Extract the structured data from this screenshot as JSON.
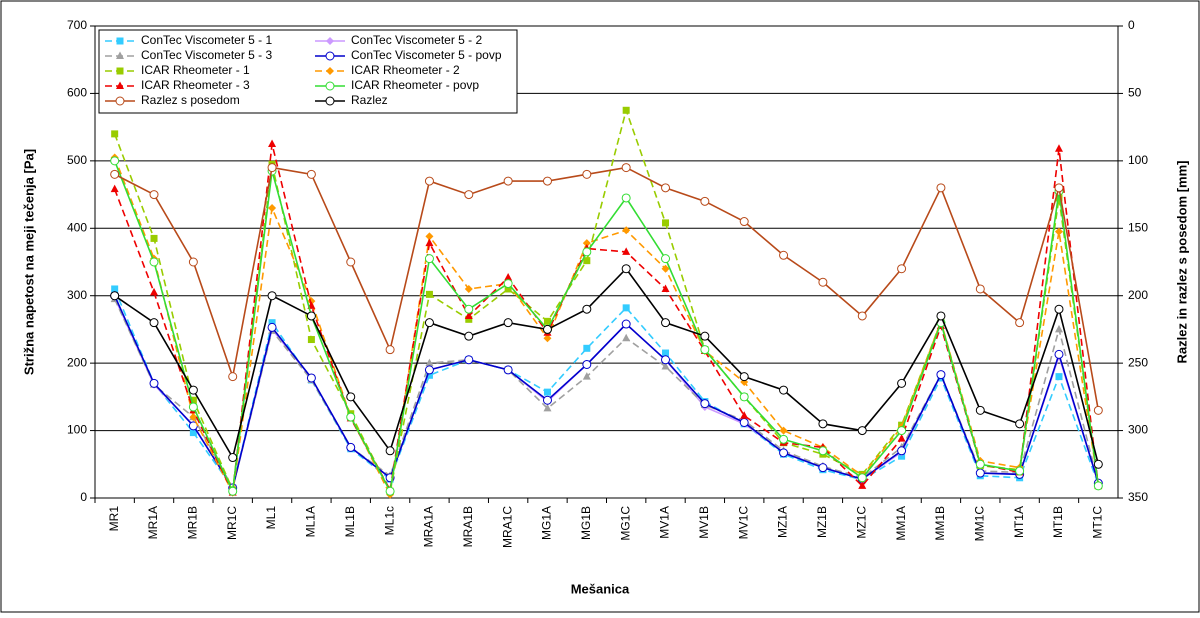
{
  "chart_data": {
    "type": "line",
    "x_label": "Mešanica",
    "y_label": "Strižna napetost na meji tečenja [Pa]",
    "y2_label": "Razlez in razlez s posedom [mm]",
    "categories": [
      "MR1",
      "MR1A",
      "MR1B",
      "MR1C",
      "ML1",
      "ML1A",
      "ML1B",
      "ML1c",
      "MRA1A",
      "MRA1B",
      "MRA1C",
      "MG1A",
      "MG1B",
      "MG1C",
      "MV1A",
      "MV1B",
      "MV1C",
      "MZ1A",
      "MZ1B",
      "MZ1C",
      "MM1A",
      "MM1B",
      "MM1C",
      "MT1A",
      "MT1B",
      "MT1C"
    ],
    "ylim": [
      0,
      700
    ],
    "yticks": [
      0,
      100,
      200,
      300,
      400,
      500,
      600,
      700
    ],
    "y2lim": [
      350,
      0
    ],
    "y2ticks": [
      0,
      50,
      100,
      150,
      200,
      250,
      300,
      350
    ],
    "grid": true,
    "legend": "upper left",
    "series": [
      {
        "name": "ConTec Viscometer 5 - 1",
        "color": "#33ccff",
        "dashed": true,
        "marker": "square",
        "values": [
          310,
          170,
          97,
          15,
          260,
          175,
          73,
          28,
          182,
          205,
          190,
          157,
          222,
          282,
          215,
          143,
          110,
          65,
          42,
          27,
          62,
          178,
          33,
          30,
          180,
          20
        ]
      },
      {
        "name": "ConTec Viscometer 5 - 2",
        "color": "#cc99ff",
        "dashed": false,
        "marker": "diamond",
        "values": [
          297,
          168,
          108,
          15,
          250,
          178,
          75,
          30,
          190,
          205,
          190,
          143,
          198,
          258,
          205,
          135,
          110,
          68,
          45,
          28,
          68,
          183,
          37,
          36,
          210,
          22
        ]
      },
      {
        "name": "ConTec Viscometer 5 - 3",
        "color": "#a0a0a0",
        "dashed": true,
        "marker": "triangle",
        "values": [
          295,
          168,
          120,
          15,
          248,
          175,
          75,
          33,
          200,
          205,
          190,
          133,
          180,
          237,
          195,
          138,
          115,
          70,
          47,
          30,
          75,
          183,
          40,
          38,
          250,
          22
        ]
      },
      {
        "name": "ConTec Viscometer 5 - povp",
        "color": "#0000cc",
        "dashed": false,
        "marker": "circle",
        "values": [
          300,
          170,
          107,
          15,
          253,
          178,
          75,
          30,
          190,
          205,
          190,
          145,
          198,
          258,
          205,
          140,
          112,
          67,
          45,
          28,
          70,
          183,
          37,
          35,
          213,
          22
        ]
      },
      {
        "name": "ICAR Rheometer - 1",
        "color": "#99cc00",
        "dashed": true,
        "marker": "square",
        "values": [
          540,
          385,
          145,
          12,
          495,
          235,
          125,
          10,
          302,
          265,
          310,
          262,
          352,
          575,
          408,
          220,
          150,
          82,
          65,
          35,
          108,
          262,
          48,
          42,
          445,
          18
        ]
      },
      {
        "name": "ICAR Rheometer - 2",
        "color": "#ff9900",
        "dashed": true,
        "marker": "diamond",
        "values": [
          505,
          355,
          120,
          8,
          430,
          292,
          120,
          5,
          388,
          310,
          318,
          237,
          378,
          397,
          340,
          218,
          172,
          100,
          75,
          33,
          105,
          262,
          55,
          45,
          395,
          20
        ]
      },
      {
        "name": "ICAR Rheometer - 3",
        "color": "#ee0000",
        "dashed": true,
        "marker": "triangle",
        "values": [
          458,
          305,
          130,
          8,
          525,
          285,
          118,
          12,
          378,
          270,
          327,
          245,
          370,
          365,
          310,
          218,
          122,
          82,
          75,
          18,
          88,
          255,
          50,
          38,
          518,
          18
        ]
      },
      {
        "name": "ICAR Rheometer - povp",
        "color": "#33dd33",
        "dashed": false,
        "marker": "circle",
        "values": [
          500,
          350,
          135,
          10,
          485,
          270,
          120,
          10,
          355,
          280,
          318,
          250,
          365,
          445,
          355,
          220,
          150,
          87,
          70,
          30,
          100,
          260,
          50,
          40,
          455,
          18
        ]
      },
      {
        "name": "Razlez s posedom",
        "color": "#b84a1a",
        "dashed": false,
        "marker": "circle",
        "axis": "y2",
        "values": [
          110,
          125,
          175,
          260,
          105,
          110,
          175,
          240,
          115,
          125,
          115,
          115,
          110,
          105,
          120,
          130,
          145,
          170,
          190,
          215,
          180,
          120,
          195,
          220,
          120,
          285
        ]
      },
      {
        "name": "Razlez",
        "color": "#000000",
        "dashed": false,
        "marker": "circle",
        "axis": "y2",
        "values": [
          200,
          220,
          270,
          320,
          200,
          215,
          275,
          315,
          220,
          230,
          220,
          225,
          210,
          180,
          220,
          230,
          260,
          270,
          295,
          300,
          265,
          215,
          285,
          295,
          210,
          325
        ]
      }
    ]
  }
}
